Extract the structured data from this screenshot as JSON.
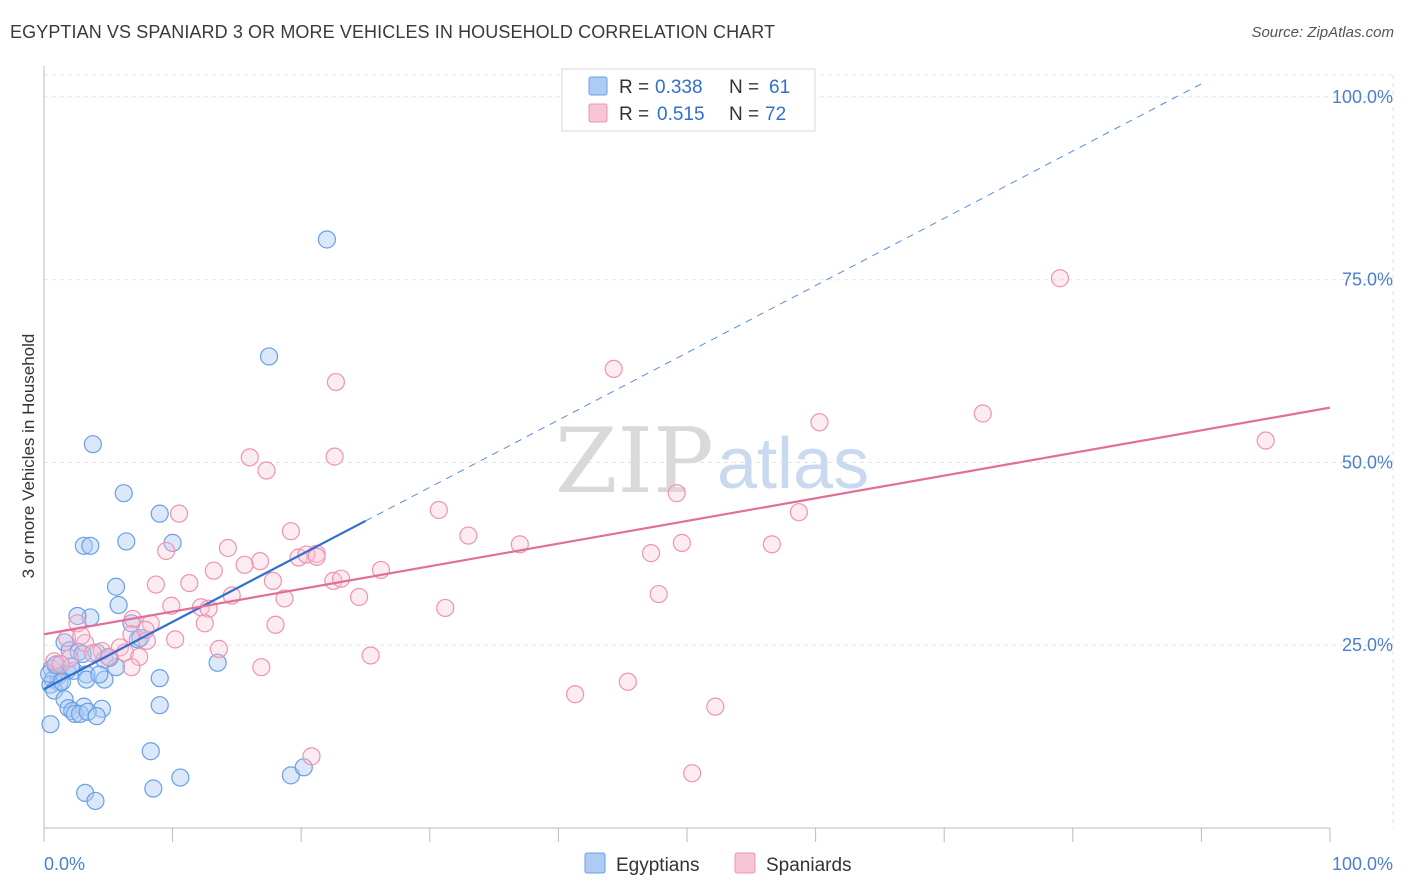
{
  "title": "EGYPTIAN VS SPANIARD 3 OR MORE VEHICLES IN HOUSEHOLD CORRELATION CHART",
  "source": "Source: ZipAtlas.com",
  "watermark": {
    "zip": "ZIP",
    "atlas": "atlas"
  },
  "colors": {
    "egyptians": "#6a9fe6",
    "egyptians_fill": "#aecbf3",
    "egyptians_line": "#2f6fd0",
    "spaniards": "#ee94b1",
    "spaniards_fill": "#f7c6d6",
    "spaniards_line": "#e0709a",
    "tick": "#4a7fd0",
    "grid": "#e3e3e3"
  },
  "legend": {
    "rows": [
      {
        "r_label": "R =",
        "r_value": "0.338",
        "n_label": "N =",
        "n_value": "61"
      },
      {
        "r_label": "R =",
        "r_value": "0.515",
        "n_label": "N =",
        "n_value": "72"
      }
    ]
  },
  "chart_data": {
    "type": "scatter",
    "title": "EGYPTIAN VS SPANIARD 3 OR MORE VEHICLES IN HOUSEHOLD CORRELATION CHART",
    "xlabel": "",
    "ylabel": "3 or more Vehicles in Household",
    "xlim": [
      0,
      100
    ],
    "ylim": [
      0,
      103
    ],
    "x_tick_labels": [
      "0.0%",
      "100.0%"
    ],
    "y_ticks": [
      25,
      50,
      75,
      100
    ],
    "y_tick_labels": [
      "25.0%",
      "50.0%",
      "75.0%",
      "100.0%"
    ],
    "grid": true,
    "legend_position": "bottom",
    "series": [
      {
        "name": "Egyptians",
        "r": 0.338,
        "n": 61,
        "trend": {
          "x0": 0,
          "y0": 19.0,
          "x1": 25,
          "y1": 42.0,
          "dashed_to_x": 100
        },
        "points": [
          [
            22,
            80.5
          ],
          [
            17.5,
            64.5
          ],
          [
            3.8,
            52.5
          ],
          [
            6.2,
            45.8
          ],
          [
            9,
            43
          ],
          [
            10,
            39
          ],
          [
            6.4,
            39.2
          ],
          [
            3.1,
            38.6
          ],
          [
            3.6,
            38.6
          ],
          [
            5.6,
            33
          ],
          [
            5.8,
            30.5
          ],
          [
            3.6,
            28.8
          ],
          [
            6.8,
            28
          ],
          [
            7.3,
            25.8
          ],
          [
            1.6,
            25.4
          ],
          [
            2,
            24.3
          ],
          [
            2.7,
            24.1
          ],
          [
            4.1,
            24
          ],
          [
            4.7,
            23
          ],
          [
            5.6,
            22
          ],
          [
            1,
            22.4
          ],
          [
            0.6,
            21.8
          ],
          [
            1.8,
            21.5
          ],
          [
            2.3,
            21.5
          ],
          [
            3.3,
            21
          ],
          [
            1.1,
            20.8
          ],
          [
            0.7,
            20.3
          ],
          [
            1.2,
            19.9
          ],
          [
            0.5,
            19.6
          ],
          [
            3.3,
            20.3
          ],
          [
            4.7,
            20.3
          ],
          [
            0.8,
            18.8
          ],
          [
            1.6,
            17.6
          ],
          [
            3.1,
            16.6
          ],
          [
            1.9,
            16.4
          ],
          [
            4.5,
            16.3
          ],
          [
            2.2,
            16
          ],
          [
            2.4,
            15.6
          ],
          [
            2.8,
            15.6
          ],
          [
            3.4,
            15.9
          ],
          [
            4.1,
            15.3
          ],
          [
            0.5,
            14.2
          ],
          [
            9,
            20.5
          ],
          [
            9,
            16.8
          ],
          [
            13.5,
            22.6
          ],
          [
            8.3,
            10.5
          ],
          [
            10.6,
            6.9
          ],
          [
            8.5,
            5.4
          ],
          [
            19.2,
            7.2
          ],
          [
            20.2,
            8.3
          ],
          [
            3.2,
            4.8
          ],
          [
            4,
            3.7
          ],
          [
            2.6,
            29
          ],
          [
            0.4,
            21.1
          ],
          [
            0.9,
            22.3
          ],
          [
            1.4,
            20
          ],
          [
            2.1,
            22.1
          ],
          [
            4.3,
            21
          ],
          [
            7.5,
            26
          ],
          [
            3,
            23.8
          ],
          [
            5.1,
            23.3
          ]
        ]
      },
      {
        "name": "Spaniards",
        "r": 0.515,
        "n": 72,
        "trend": {
          "x0": 0,
          "y0": 26.5,
          "x1": 100,
          "y1": 57.5
        },
        "points": [
          [
            79,
            75.2
          ],
          [
            44.3,
            62.8
          ],
          [
            22.7,
            61
          ],
          [
            73,
            56.7
          ],
          [
            60.3,
            55.5
          ],
          [
            95,
            53
          ],
          [
            16,
            50.7
          ],
          [
            22.6,
            50.8
          ],
          [
            17.3,
            48.9
          ],
          [
            49.2,
            45.8
          ],
          [
            30.7,
            43.5
          ],
          [
            10.5,
            43
          ],
          [
            58.7,
            43.2
          ],
          [
            19.2,
            40.6
          ],
          [
            33,
            40
          ],
          [
            37,
            38.8
          ],
          [
            49.6,
            39
          ],
          [
            56.6,
            38.8
          ],
          [
            47.2,
            37.6
          ],
          [
            9.5,
            37.9
          ],
          [
            14.3,
            38.3
          ],
          [
            16.8,
            36.5
          ],
          [
            19.8,
            37
          ],
          [
            21.2,
            37.5
          ],
          [
            15.6,
            36
          ],
          [
            20.4,
            37.4
          ],
          [
            13.2,
            35.2
          ],
          [
            26.2,
            35.3
          ],
          [
            22.5,
            33.8
          ],
          [
            11.3,
            33.5
          ],
          [
            17.8,
            33.8
          ],
          [
            8.7,
            33.3
          ],
          [
            14.6,
            31.8
          ],
          [
            18.7,
            31.4
          ],
          [
            24.5,
            31.6
          ],
          [
            31.2,
            30.1
          ],
          [
            47.8,
            32
          ],
          [
            9.9,
            30.4
          ],
          [
            12.2,
            30.2
          ],
          [
            12.8,
            30
          ],
          [
            6.9,
            28.6
          ],
          [
            8.3,
            28
          ],
          [
            12.5,
            28
          ],
          [
            18,
            27.8
          ],
          [
            2.6,
            28
          ],
          [
            6.8,
            26.5
          ],
          [
            10.2,
            25.8
          ],
          [
            8,
            25.6
          ],
          [
            1.8,
            26
          ],
          [
            3.2,
            25.3
          ],
          [
            5.9,
            24.7
          ],
          [
            4.5,
            24.2
          ],
          [
            6.3,
            24
          ],
          [
            13.6,
            24.5
          ],
          [
            2,
            23.2
          ],
          [
            5,
            23.4
          ],
          [
            7.4,
            23.4
          ],
          [
            25.4,
            23.6
          ],
          [
            0.8,
            22.8
          ],
          [
            6.8,
            22
          ],
          [
            16.9,
            22
          ],
          [
            45.4,
            20
          ],
          [
            41.3,
            18.3
          ],
          [
            52.2,
            16.6
          ],
          [
            20.8,
            9.8
          ],
          [
            50.4,
            7.5
          ],
          [
            1.3,
            22.4
          ],
          [
            3.8,
            23.9
          ],
          [
            2.9,
            26.3
          ],
          [
            7.9,
            27.1
          ],
          [
            23.1,
            34.1
          ],
          [
            21.2,
            37.1
          ]
        ]
      }
    ]
  },
  "bottom_legend": [
    {
      "label": "Egyptians"
    },
    {
      "label": "Spaniards"
    }
  ]
}
